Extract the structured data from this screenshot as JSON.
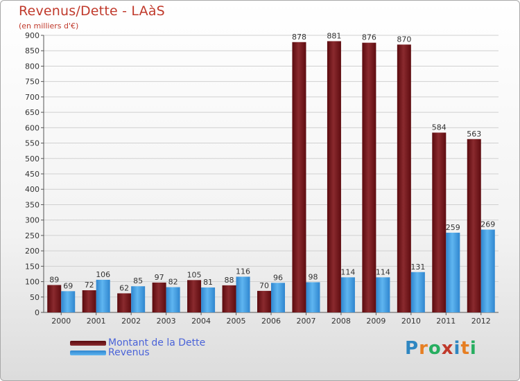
{
  "title": "Revenus/Dette - LAàS",
  "subtitle": "(en milliers d'€)",
  "logo_letters": [
    {
      "ch": "P",
      "color": "#2e86c1"
    },
    {
      "ch": "r",
      "color": "#e67e22"
    },
    {
      "ch": "o",
      "color": "#27ae60"
    },
    {
      "ch": "x",
      "color": "#c0392b"
    },
    {
      "ch": "i",
      "color": "#2e86c1"
    },
    {
      "ch": "t",
      "color": "#e67e22"
    },
    {
      "ch": "i",
      "color": "#27ae60"
    }
  ],
  "colors": {
    "dette": "#6e0f14",
    "revenus": "#3b9be3"
  },
  "chart_data": {
    "type": "bar",
    "categories": [
      "2000",
      "2001",
      "2002",
      "2003",
      "2004",
      "2005",
      "2006",
      "2007",
      "2008",
      "2009",
      "2010",
      "2011",
      "2012"
    ],
    "series": [
      {
        "name": "Montant de la Dette",
        "values": [
          89,
          72,
          62,
          97,
          105,
          88,
          70,
          878,
          881,
          876,
          870,
          584,
          563
        ]
      },
      {
        "name": "Revenus",
        "values": [
          69,
          106,
          85,
          82,
          81,
          116,
          96,
          98,
          114,
          114,
          131,
          259,
          269
        ]
      }
    ],
    "ylim": [
      0,
      900
    ],
    "yticks": [
      0,
      50,
      100,
      150,
      200,
      250,
      300,
      350,
      400,
      450,
      500,
      550,
      600,
      650,
      700,
      750,
      800,
      850,
      900
    ],
    "grid": true,
    "legend": "bottom-left"
  }
}
